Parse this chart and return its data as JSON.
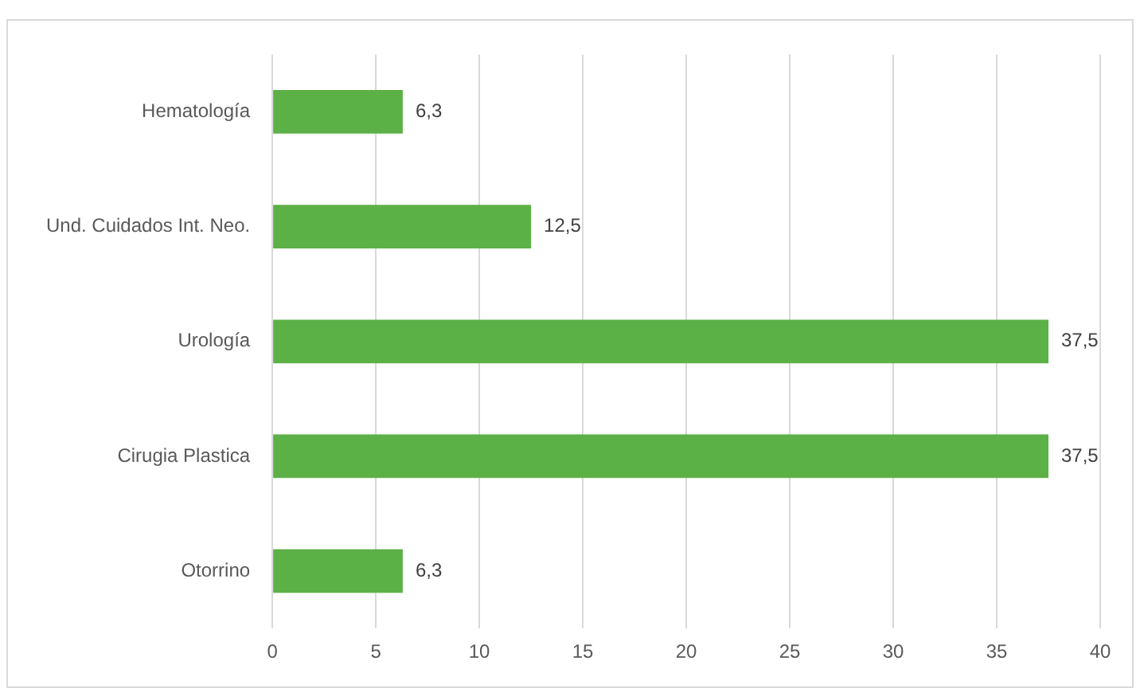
{
  "chart_data": {
    "type": "bar",
    "orientation": "horizontal",
    "categories": [
      "Hematología",
      "Und. Cuidados Int. Neo.",
      "Urología",
      "Cirugia Plastica",
      "Otorrino"
    ],
    "values": [
      6.3,
      12.5,
      37.5,
      37.5,
      6.3
    ],
    "value_labels": [
      "6,3",
      "12,5",
      "37,5",
      "37,5",
      "6,3"
    ],
    "color": "#5cb146",
    "xlim": [
      0,
      40
    ],
    "xticks": [
      0,
      5,
      10,
      15,
      20,
      25,
      30,
      35,
      40
    ],
    "grid": "x",
    "legend": false
  }
}
